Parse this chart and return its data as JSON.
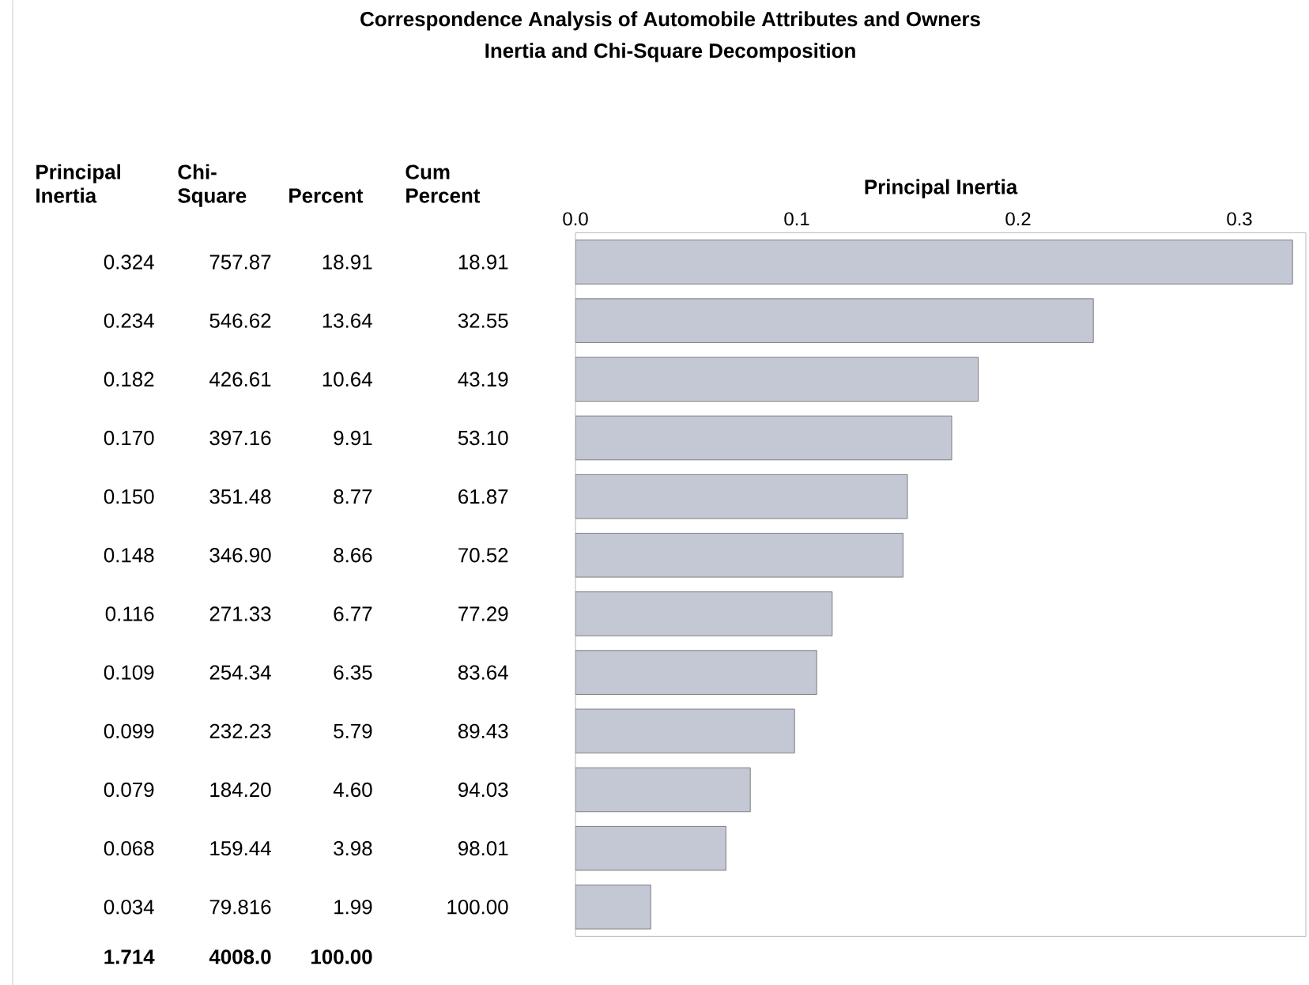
{
  "chart_data": {
    "type": "bar",
    "orientation": "horizontal",
    "title": "Correspondence Analysis of Automobile Attributes and Owners",
    "subtitle": "Inertia and Chi-Square Decomposition",
    "xlabel": "Principal Inertia",
    "categories": [
      null,
      null,
      null,
      null,
      null,
      null,
      null,
      null,
      null,
      null,
      null,
      null
    ],
    "values": [
      0.324,
      0.234,
      0.182,
      0.17,
      0.15,
      0.148,
      0.116,
      0.109,
      0.099,
      0.079,
      0.068,
      0.034
    ],
    "value_labels": [
      "0.324",
      "0.234",
      "0.182",
      "0.170",
      "0.150",
      "0.148",
      "0.116",
      "0.109",
      "0.099",
      "0.079",
      "0.068",
      "0.034"
    ],
    "color": "#c3c8d4",
    "xlim": [
      0,
      0.33
    ],
    "xticks": [
      {
        "value": 0,
        "label": "0.0"
      },
      {
        "value": 0.1,
        "label": "0.1"
      },
      {
        "value": 0.2,
        "label": "0.2"
      },
      {
        "value": 0.3,
        "label": "0.3"
      }
    ],
    "grid": false,
    "annotations": [
      "Principal Inertia",
      "Chi-Square",
      "Percent",
      "Cum Percent",
      "757.87",
      "18.91",
      "18.91",
      "546.62",
      "13.64",
      "32.55",
      "426.61",
      "10.64",
      "43.19",
      "397.16",
      "9.91",
      "53.10",
      "351.48",
      "8.77",
      "61.87",
      "346.90",
      "8.66",
      "70.52",
      "271.33",
      "6.77",
      "77.29",
      "254.34",
      "6.35",
      "83.64",
      "232.23",
      "5.79",
      "89.43",
      "184.20",
      "4.60",
      "94.03",
      "159.44",
      "3.98",
      "98.01",
      "79.816",
      "1.99",
      "100.00",
      "1.714",
      "4008.0",
      "100.00"
    ]
  }
}
